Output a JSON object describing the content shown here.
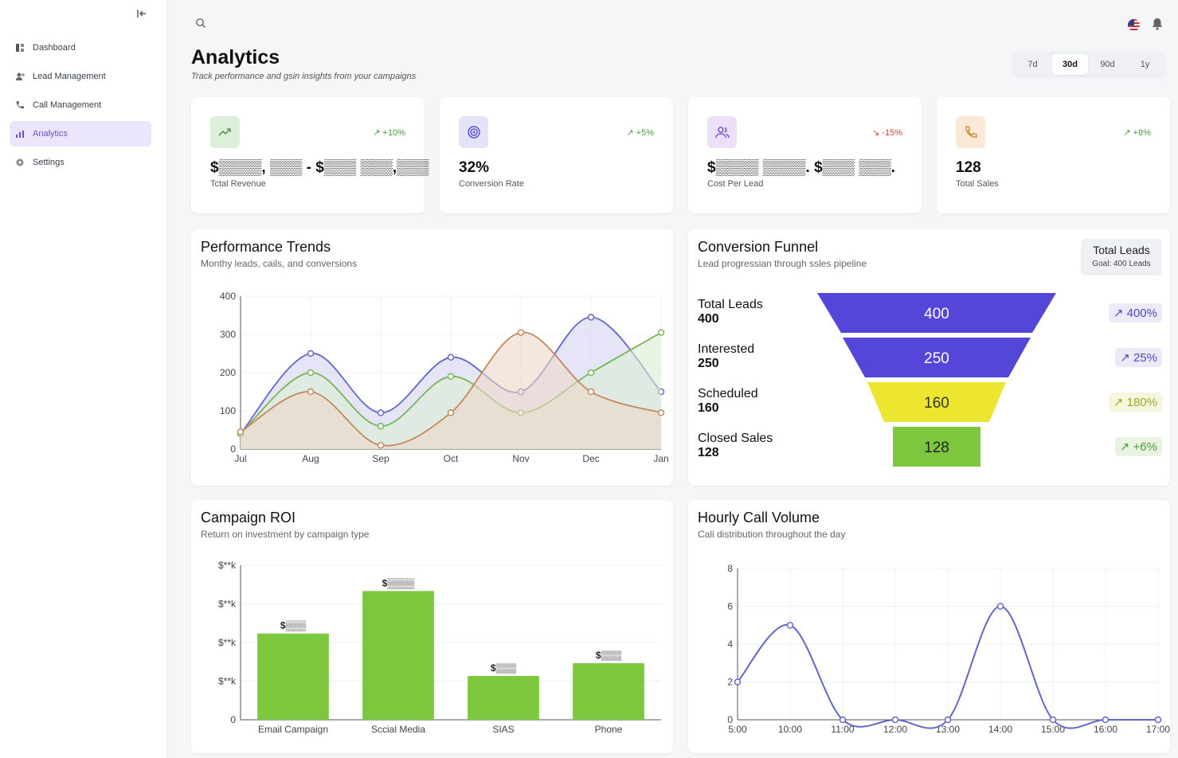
{
  "sidebar": {
    "collapse_icon": "collapse-left-icon",
    "items": [
      {
        "label": "Dashboard",
        "icon": "dashboard-icon",
        "active": false
      },
      {
        "label": "Lead Management",
        "icon": "users-icon",
        "active": false
      },
      {
        "label": "Call Management",
        "icon": "phone-icon",
        "active": false
      },
      {
        "label": "Analytics",
        "icon": "chart-icon",
        "active": true
      },
      {
        "label": "Settings",
        "icon": "gear-icon",
        "active": false
      }
    ]
  },
  "header": {
    "title": "Analytics",
    "subtitle": "Track performance and gsin insights from your campaigns",
    "ranges": [
      "7d",
      "30d",
      "90d",
      "1y"
    ],
    "selected_range": "30d"
  },
  "kpis": [
    {
      "label": "Tctal Revenue",
      "value": "$▒▒▒▒, ▒▒▒ - $▒▒▒ ▒▒▒,▒▒▒",
      "delta": "+10%",
      "direction": "up",
      "icon": "trend-up-icon",
      "icon_bg": "#dcefd9",
      "icon_color": "#5a9a52",
      "delta_color": "#4c9a3f"
    },
    {
      "label": "Conversion Rate",
      "value": "32%",
      "delta": "+5%",
      "direction": "up",
      "icon": "target-icon",
      "icon_bg": "#e4e3f8",
      "icon_color": "#5a55c9",
      "delta_color": "#4c9a3f"
    },
    {
      "label": "Cost Per Lead",
      "value": "$▒▒▒▒ ▒▒▒▒. $▒▒▒ ▒▒▒.",
      "delta": "-15%",
      "direction": "down",
      "icon": "users-icon",
      "icon_bg": "#ebe0f8",
      "icon_color": "#7b4fcf",
      "delta_color": "#d9433b"
    },
    {
      "label": "Total Sales",
      "value": "128",
      "delta": "+8%",
      "direction": "up",
      "icon": "phone-icon",
      "icon_bg": "#fae9d6",
      "icon_color": "#d88a3c",
      "delta_color": "#4c9a3f"
    }
  ],
  "performance": {
    "title": "Performance Trends",
    "subtitle": "Monthy leads, cails, and conversions",
    "chart_data": {
      "type": "area",
      "categories": [
        "Jul",
        "Aug",
        "Sep",
        "Oct",
        "Nov",
        "Dec",
        "Jan"
      ],
      "ylim": [
        0,
        400
      ],
      "yticks": [
        0,
        100,
        200,
        300,
        400
      ],
      "grid": true,
      "series": [
        {
          "values": [
            40,
            250,
            95,
            240,
            150,
            345,
            150
          ],
          "color": "#6366c9",
          "fill": "#d4d4f2"
        },
        {
          "values": [
            40,
            200,
            60,
            190,
            95,
            200,
            305
          ],
          "color": "#78b556",
          "fill": "#dbedd3"
        },
        {
          "values": [
            45,
            150,
            10,
            95,
            305,
            150,
            95
          ],
          "color": "#c4895a",
          "fill": "#ecd7c8"
        }
      ]
    }
  },
  "funnel": {
    "title": "Conversion Funnel",
    "subtitle": "Lead progressian through ssles pipeline",
    "badge_title": "Total Leads",
    "badge_sub": "Goal: 400 Leads",
    "stages": [
      {
        "label": "Total Leads",
        "value": "400",
        "pct": "400%",
        "color": "#5446d8",
        "pct_color": "#4d49c4",
        "pct_bg": "#eceaf9"
      },
      {
        "label": "Interested",
        "value": "250",
        "pct": "25%",
        "color": "#5446d8",
        "pct_color": "#4d49c4",
        "pct_bg": "#eceaf9"
      },
      {
        "label": "Scheduled",
        "value": "160",
        "pct": "180%",
        "color": "#ece631",
        "pct_color": "#a0a628",
        "pct_bg": "#f6f6dc"
      },
      {
        "label": "Closed Sales",
        "value": "128",
        "pct": "+6%",
        "color": "#7dc73f",
        "pct_color": "#4c9a3f",
        "pct_bg": "#e8f3e0"
      }
    ]
  },
  "roi": {
    "title": "Campaign ROI",
    "subtitle": "Return on investment by campaign type",
    "chart_data": {
      "type": "bar",
      "categories": [
        "Email Campaign",
        "Sccial Media",
        "SIAS",
        "Phone"
      ],
      "values": [
        67,
        100,
        34,
        44
      ],
      "value_labels": [
        "$▒▒▒",
        "$▒▒▒▒",
        "$▒▒▒",
        "$▒▒▒"
      ],
      "yticks": [
        "0",
        "$**k",
        "$**k",
        "$**k",
        "$**k"
      ],
      "ylim": [
        0,
        120
      ],
      "color": "#7dc73f",
      "grid": true
    }
  },
  "hourly": {
    "title": "Hourly Call Volume",
    "subtitle": "Cali distribution throughout the day",
    "chart_data": {
      "type": "line",
      "categories": [
        "5:00",
        "10:00",
        "11:00",
        "12:00",
        "13:00",
        "14:00",
        "15:00",
        "16:00",
        "17:00"
      ],
      "values": [
        2,
        5,
        0,
        0,
        0,
        6,
        0,
        0,
        0
      ],
      "ylim": [
        0,
        8
      ],
      "yticks": [
        0,
        2,
        4,
        6,
        8
      ],
      "color": "#6366c9",
      "grid": true
    }
  }
}
